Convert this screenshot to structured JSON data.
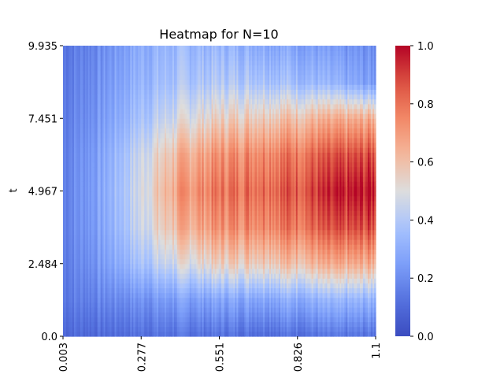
{
  "chart_data": {
    "type": "heatmap",
    "title": "Heatmap for N=10",
    "xlabel": "",
    "ylabel": "t",
    "x_tick_labels": [
      "0.003",
      "0.277",
      "0.551",
      "0.826",
      "1.1"
    ],
    "y_tick_labels": [
      "0.0",
      "2.484",
      "4.967",
      "7.451",
      "9.935"
    ],
    "xlim": [
      0.003,
      1.1
    ],
    "ylim": [
      0.0,
      9.935
    ],
    "colorbar": {
      "min": 0.0,
      "max": 1.0,
      "tick_labels": [
        "0.0",
        "0.2",
        "0.4",
        "0.6",
        "0.8",
        "1.0"
      ],
      "colormap": "coolwarm"
    },
    "colors": {
      "low": "#3b4cc0",
      "mid": "#dddddd",
      "high": "#b40426"
    },
    "grid_x": [
      0.003,
      0.14,
      0.277,
      0.414,
      0.551,
      0.689,
      0.826,
      0.963,
      1.1
    ],
    "grid_t": [
      0.0,
      1.242,
      2.484,
      3.726,
      4.967,
      6.209,
      7.451,
      8.693,
      9.935
    ],
    "values": [
      [
        0.1,
        0.1,
        0.12,
        0.12,
        0.12,
        0.12,
        0.12,
        0.12,
        0.12
      ],
      [
        0.15,
        0.18,
        0.22,
        0.25,
        0.27,
        0.29,
        0.3,
        0.31,
        0.32
      ],
      [
        0.16,
        0.24,
        0.38,
        0.48,
        0.55,
        0.59,
        0.61,
        0.63,
        0.65
      ],
      [
        0.17,
        0.27,
        0.46,
        0.63,
        0.72,
        0.77,
        0.8,
        0.84,
        0.88
      ],
      [
        0.17,
        0.28,
        0.48,
        0.7,
        0.79,
        0.84,
        0.87,
        0.93,
        0.99
      ],
      [
        0.17,
        0.27,
        0.46,
        0.63,
        0.72,
        0.77,
        0.8,
        0.84,
        0.88
      ],
      [
        0.16,
        0.24,
        0.38,
        0.48,
        0.55,
        0.59,
        0.61,
        0.63,
        0.65
      ],
      [
        0.15,
        0.22,
        0.33,
        0.38,
        0.4,
        0.4,
        0.36,
        0.3,
        0.24
      ],
      [
        0.14,
        0.2,
        0.3,
        0.34,
        0.33,
        0.31,
        0.27,
        0.22,
        0.2
      ]
    ]
  }
}
